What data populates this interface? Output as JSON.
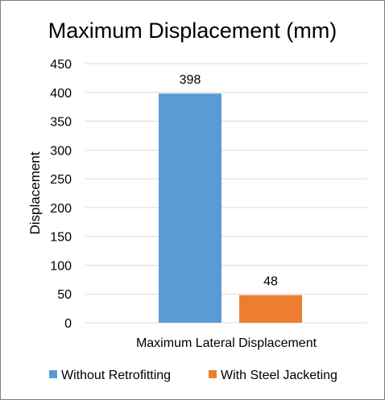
{
  "chart_data": {
    "type": "bar",
    "title": "Maximum Displacement  (mm)",
    "ylabel": "Displacement",
    "xlabel": "",
    "categories": [
      "Maximum Lateral Displacement"
    ],
    "series": [
      {
        "name": "Without Retrofitting",
        "values": [
          398
        ],
        "color": "#5b9bd5"
      },
      {
        "name": "With Steel Jacketing",
        "values": [
          48
        ],
        "color": "#ed7d31"
      }
    ],
    "ylim": [
      0,
      450
    ],
    "yticks": [
      0,
      50,
      100,
      150,
      200,
      250,
      300,
      350,
      400,
      450
    ],
    "grid": true,
    "legend": "bottom"
  }
}
